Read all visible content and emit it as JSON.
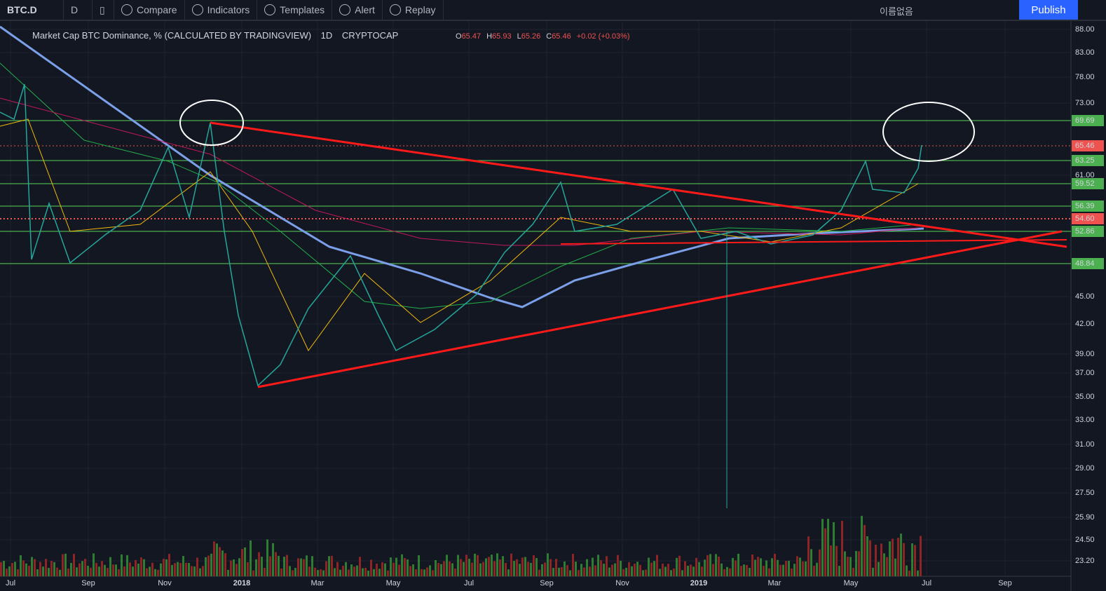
{
  "toolbar": {
    "symbol": "BTC.D",
    "interval": "D",
    "items": [
      "Compare",
      "Indicators",
      "Templates",
      "Alert",
      "Replay"
    ],
    "layout_name": "이름없음",
    "publish": "Publish"
  },
  "legend": {
    "title": "Market Cap BTC Dominance, % (CALCULATED BY TRADINGVIEW)",
    "interval": "1D",
    "exchange": "CRYPTOCAP",
    "ohlc": [
      {
        "key": "O",
        "value": "65.47"
      },
      {
        "key": "H",
        "value": "65.93"
      },
      {
        "key": "L",
        "value": "65.26"
      },
      {
        "key": "C",
        "value": "65.46"
      }
    ],
    "change": "+0.02 (+0.03%)"
  },
  "price_axis": [
    "88.00",
    "83.00",
    "78.00",
    "73.00",
    "61.00",
    "45.00",
    "42.00",
    "39.00",
    "37.00",
    "35.00",
    "33.00",
    "31.00",
    "29.00",
    "27.50",
    "25.90",
    "24.50",
    "23.20"
  ],
  "level_labels": {
    "green": [
      "69.69",
      "63.25",
      "59.52",
      "56.39",
      "52.86",
      "48.84"
    ],
    "red": [
      "65.46",
      "54.60"
    ]
  },
  "time_axis": [
    "Jul",
    "Sep",
    "Nov",
    "2018",
    "Mar",
    "May",
    "Jul",
    "Sep",
    "Nov",
    "2019",
    "Mar",
    "May",
    "Jul",
    "Sep"
  ]
}
